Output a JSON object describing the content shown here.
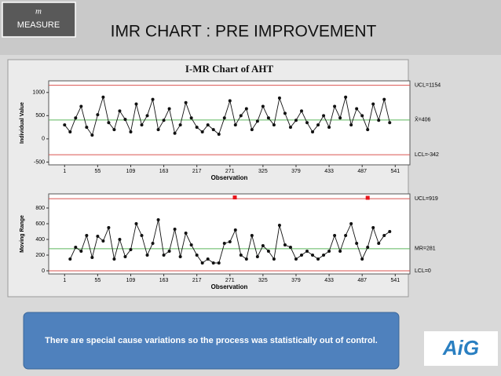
{
  "slide": {
    "section_icon": "m",
    "section": "MEASURE",
    "title": "IMR CHART : PRE IMPROVEMENT",
    "note": "There are special cause variations so the process was statistically out of control.",
    "logo": "AiG"
  },
  "chart_data": [
    {
      "type": "line",
      "title": "I-MR Chart of AHT",
      "y_label": "Individual Value",
      "x_label": "Observation",
      "color": "#111111",
      "x": [
        1,
        10,
        19,
        28,
        37,
        46,
        55,
        64,
        73,
        82,
        91,
        100,
        109,
        118,
        127,
        136,
        145,
        154,
        163,
        172,
        181,
        190,
        199,
        208,
        217,
        226,
        235,
        244,
        253,
        262,
        271,
        280,
        289,
        298,
        307,
        316,
        325,
        334,
        343,
        352,
        361,
        370,
        379,
        388,
        397,
        406,
        415,
        424,
        433,
        442,
        451,
        460,
        469,
        478,
        487,
        496,
        505,
        514,
        523,
        532
      ],
      "values": [
        300,
        150,
        450,
        700,
        250,
        80,
        520,
        900,
        350,
        200,
        600,
        420,
        150,
        750,
        300,
        500,
        850,
        200,
        400,
        650,
        120,
        300,
        780,
        450,
        250,
        150,
        300,
        200,
        100,
        450,
        820,
        300,
        500,
        650,
        200,
        380,
        700,
        450,
        300,
        880,
        550,
        250,
        400,
        600,
        350,
        150,
        300,
        500,
        250,
        700,
        450,
        900,
        300,
        650,
        500,
        200,
        750,
        400,
        850,
        350
      ],
      "xlim": [
        -25,
        565
      ],
      "xticks": [
        1,
        55,
        109,
        163,
        217,
        271,
        325,
        379,
        433,
        487,
        541
      ],
      "ylim": [
        -560,
        1250
      ],
      "yticks": [
        -500,
        0,
        500,
        1000
      ],
      "limits": [
        {
          "label": "UCL=1154",
          "value": 1154,
          "color": "#d9534f"
        },
        {
          "label": "X̄=406",
          "value": 406,
          "color": "#5cb85c"
        },
        {
          "label": "LCL=-342",
          "value": -342,
          "color": "#d9534f"
        }
      ]
    },
    {
      "type": "line",
      "y_label": "Moving Range",
      "x_label": "Observation",
      "color": "#111111",
      "x": [
        1,
        10,
        19,
        28,
        37,
        46,
        55,
        64,
        73,
        82,
        91,
        100,
        109,
        118,
        127,
        136,
        145,
        154,
        163,
        172,
        181,
        190,
        199,
        208,
        217,
        226,
        235,
        244,
        253,
        262,
        271,
        280,
        289,
        298,
        307,
        316,
        325,
        334,
        343,
        352,
        361,
        370,
        379,
        388,
        397,
        406,
        415,
        424,
        433,
        442,
        451,
        460,
        469,
        478,
        487,
        496,
        505,
        514,
        523,
        532
      ],
      "values": [
        null,
        150,
        300,
        250,
        450,
        170,
        440,
        380,
        550,
        150,
        400,
        180,
        270,
        600,
        450,
        200,
        350,
        650,
        200,
        250,
        530,
        180,
        480,
        330,
        200,
        100,
        150,
        100,
        100,
        350,
        370,
        520,
        200,
        150,
        450,
        180,
        320,
        250,
        150,
        580,
        330,
        300,
        150,
        200,
        250,
        200,
        150,
        200,
        250,
        450,
        250,
        450,
        600,
        350,
        150,
        300,
        550,
        350,
        450,
        500
      ],
      "outliers": {
        "x": [
          279,
          496
        ],
        "values": [
          935,
          930
        ],
        "color": "#e8141b"
      },
      "xlim": [
        -25,
        565
      ],
      "xticks": [
        1,
        55,
        109,
        163,
        217,
        271,
        325,
        379,
        433,
        487,
        541
      ],
      "ylim": [
        -40,
        980
      ],
      "yticks": [
        0,
        200,
        400,
        600,
        800
      ],
      "limits": [
        {
          "label": "UCL=919",
          "value": 919,
          "color": "#d9534f"
        },
        {
          "label": "MR=281",
          "value": 281,
          "color": "#5cb85c"
        },
        {
          "label": "LCL=0",
          "value": 0,
          "color": "#d9534f"
        }
      ]
    }
  ]
}
